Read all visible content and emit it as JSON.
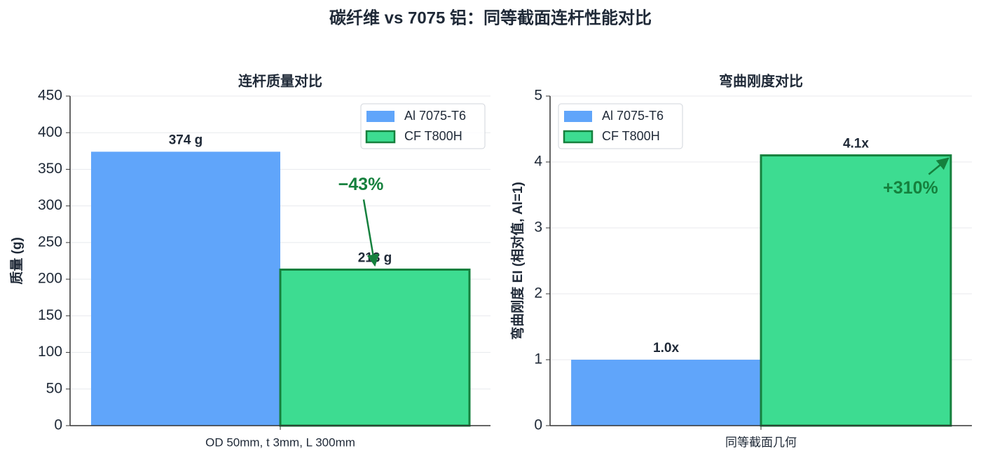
{
  "title": "碳纤维 vs 7075 铝：同等截面连杆性能对比",
  "chart_data": [
    {
      "type": "bar",
      "title": "连杆质量对比",
      "ylabel": "质量 (g)",
      "categories": [
        "OD 50mm, t 3mm, L 300mm"
      ],
      "series": [
        {
          "name": "Al 7075-T6",
          "color": "#60a5fa",
          "values": [
            374
          ],
          "value_labels": [
            "374 g"
          ]
        },
        {
          "name": "CF T800H",
          "color": "#3ddc91",
          "edgecolor": "#15803d",
          "values": [
            213
          ],
          "value_labels": [
            "213 g"
          ]
        }
      ],
      "ylim": [
        0,
        450
      ],
      "yticks": [
        0,
        50,
        100,
        150,
        200,
        250,
        300,
        350,
        400,
        450
      ],
      "grid": true,
      "legend": "upper right",
      "annotation": {
        "text": "−43%",
        "color": "#15803d"
      }
    },
    {
      "type": "bar",
      "title": "弯曲刚度对比",
      "ylabel": "弯曲刚度 EI (相对值, Al=1)",
      "categories": [
        "同等截面几何"
      ],
      "series": [
        {
          "name": "Al 7075-T6",
          "color": "#60a5fa",
          "values": [
            1.0
          ],
          "value_labels": [
            "1.0x"
          ]
        },
        {
          "name": "CF T800H",
          "color": "#3ddc91",
          "edgecolor": "#15803d",
          "values": [
            4.1
          ],
          "value_labels": [
            "4.1x"
          ]
        }
      ],
      "ylim": [
        0,
        5
      ],
      "yticks": [
        0,
        1,
        2,
        3,
        4,
        5
      ],
      "grid": true,
      "legend": "upper left",
      "annotation": {
        "text": "+310%",
        "color": "#15803d"
      }
    }
  ]
}
